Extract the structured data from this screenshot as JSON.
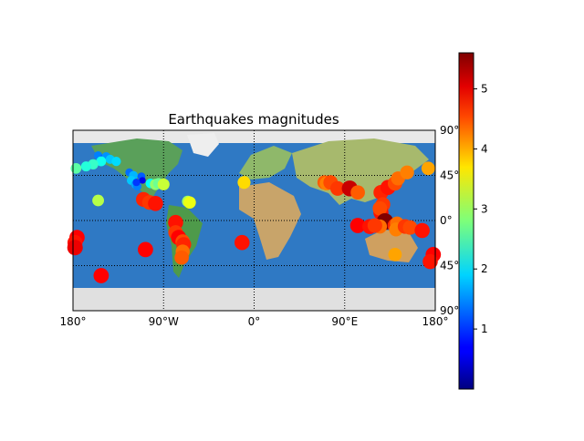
{
  "title": "Earthquakes magnitudes",
  "map": {
    "lon_range": [
      -180,
      180
    ],
    "lat_range": [
      -90,
      90
    ],
    "graticule_lon": [
      -180,
      -90,
      0,
      90,
      180
    ],
    "graticule_lat": [
      -90,
      -45,
      0,
      45,
      90
    ],
    "lon_labels": [
      "180°",
      "90°W",
      "0°",
      "90°E",
      "180°"
    ],
    "lat_labels": [
      "90°",
      "45°",
      "0°",
      "45°",
      "90°"
    ],
    "background": "shaded relief / etopo"
  },
  "colorbar": {
    "colormap": "jet",
    "range": [
      0,
      5.6
    ],
    "ticks": [
      1,
      2,
      3,
      4,
      5
    ],
    "tick_labels": [
      "1",
      "2",
      "3",
      "4",
      "5"
    ]
  },
  "chart_data": {
    "type": "scatter",
    "title": "Earthquakes magnitudes",
    "xlabel": "",
    "ylabel": "",
    "x_unit": "longitude (deg)",
    "y_unit": "latitude (deg)",
    "xlim": [
      -180,
      180
    ],
    "ylim": [
      -90,
      90
    ],
    "grid": true,
    "color_encodes": "magnitude",
    "points": [
      {
        "lon": -155,
        "lat": 65,
        "mag": 1.4
      },
      {
        "lon": -150,
        "lat": 62,
        "mag": 1.2
      },
      {
        "lon": -147,
        "lat": 64,
        "mag": 1.5
      },
      {
        "lon": -143,
        "lat": 61,
        "mag": 1.8
      },
      {
        "lon": -152,
        "lat": 59,
        "mag": 2.2
      },
      {
        "lon": -160,
        "lat": 56,
        "mag": 2.4
      },
      {
        "lon": -167,
        "lat": 54,
        "mag": 2.3
      },
      {
        "lon": -177,
        "lat": 52,
        "mag": 2.6
      },
      {
        "lon": -137,
        "lat": 59,
        "mag": 1.9
      },
      {
        "lon": -124,
        "lat": 48,
        "mag": 1.3
      },
      {
        "lon": -120,
        "lat": 45,
        "mag": 1.7
      },
      {
        "lon": -122,
        "lat": 40,
        "mag": 1.8
      },
      {
        "lon": -118,
        "lat": 36,
        "mag": 1.6
      },
      {
        "lon": -116,
        "lat": 34,
        "mag": 1.4
      },
      {
        "lon": -112,
        "lat": 44,
        "mag": 1.2
      },
      {
        "lon": -111,
        "lat": 40,
        "mag": 0.6
      },
      {
        "lon": -117,
        "lat": 38,
        "mag": 1.0
      },
      {
        "lon": -103,
        "lat": 37,
        "mag": 2.1
      },
      {
        "lon": -98,
        "lat": 36,
        "mag": 2.9
      },
      {
        "lon": -95,
        "lat": 37,
        "mag": 2.7
      },
      {
        "lon": -90,
        "lat": 36,
        "mag": 3.2
      },
      {
        "lon": -110,
        "lat": 21,
        "mag": 4.7
      },
      {
        "lon": -104,
        "lat": 18,
        "mag": 4.6
      },
      {
        "lon": -98,
        "lat": 17,
        "mag": 4.8
      },
      {
        "lon": -66,
        "lat": 19,
        "mag": 3.0
      },
      {
        "lon": -64,
        "lat": 18,
        "mag": 3.4
      },
      {
        "lon": -155,
        "lat": 20,
        "mag": 3.1
      },
      {
        "lon": -78,
        "lat": -2,
        "mag": 4.8
      },
      {
        "lon": -78,
        "lat": -12,
        "mag": 4.6
      },
      {
        "lon": -75,
        "lat": -17,
        "mag": 4.9
      },
      {
        "lon": -71,
        "lat": -21,
        "mag": 4.5
      },
      {
        "lon": -70,
        "lat": -24,
        "mag": 4.7
      },
      {
        "lon": -71,
        "lat": -31,
        "mag": 4.3
      },
      {
        "lon": -72,
        "lat": -37,
        "mag": 4.4
      },
      {
        "lon": -108,
        "lat": -29,
        "mag": 4.9
      },
      {
        "lon": -176,
        "lat": -17,
        "mag": 4.9
      },
      {
        "lon": -178,
        "lat": -22,
        "mag": 4.8
      },
      {
        "lon": -178,
        "lat": -27,
        "mag": 5.0
      },
      {
        "lon": -152,
        "lat": -55,
        "mag": 4.9
      },
      {
        "lon": -12,
        "lat": -22,
        "mag": 4.8
      },
      {
        "lon": -10,
        "lat": 38,
        "mag": 3.7
      },
      {
        "lon": 70,
        "lat": 38,
        "mag": 4.4
      },
      {
        "lon": 72,
        "lat": 37,
        "mag": 4.2
      },
      {
        "lon": 76,
        "lat": 38,
        "mag": 4.5
      },
      {
        "lon": 83,
        "lat": 32,
        "mag": 4.6
      },
      {
        "lon": 95,
        "lat": 32,
        "mag": 5.2
      },
      {
        "lon": 103,
        "lat": 28,
        "mag": 4.4
      },
      {
        "lon": 126,
        "lat": 28,
        "mag": 4.7
      },
      {
        "lon": 133,
        "lat": 33,
        "mag": 4.8
      },
      {
        "lon": 140,
        "lat": 37,
        "mag": 4.5
      },
      {
        "lon": 143,
        "lat": 42,
        "mag": 4.3
      },
      {
        "lon": 152,
        "lat": 48,
        "mag": 4.2
      },
      {
        "lon": 173,
        "lat": 52,
        "mag": 4.0
      },
      {
        "lon": 128,
        "lat": 16,
        "mag": 4.6
      },
      {
        "lon": 126,
        "lat": 8,
        "mag": 4.8
      },
      {
        "lon": 125,
        "lat": 12,
        "mag": 4.5
      },
      {
        "lon": 130,
        "lat": -1,
        "mag": 5.6
      },
      {
        "lon": 140,
        "lat": -5,
        "mag": 4.7
      },
      {
        "lon": 142,
        "lat": -3,
        "mag": 4.3
      },
      {
        "lon": 141,
        "lat": -9,
        "mag": 4.2
      },
      {
        "lon": 125,
        "lat": -6,
        "mag": 4.3
      },
      {
        "lon": 103,
        "lat": -5,
        "mag": 4.9
      },
      {
        "lon": 115,
        "lat": -6,
        "mag": 4.8
      },
      {
        "lon": 120,
        "lat": -5,
        "mag": 4.6
      },
      {
        "lon": 150,
        "lat": -6,
        "mag": 4.6
      },
      {
        "lon": 155,
        "lat": -7,
        "mag": 4.5
      },
      {
        "lon": 167,
        "lat": -10,
        "mag": 4.8
      },
      {
        "lon": 178,
        "lat": -34,
        "mag": 4.9
      },
      {
        "lon": 175,
        "lat": -41,
        "mag": 4.8
      },
      {
        "lon": 140,
        "lat": -34,
        "mag": 4.0
      }
    ]
  }
}
